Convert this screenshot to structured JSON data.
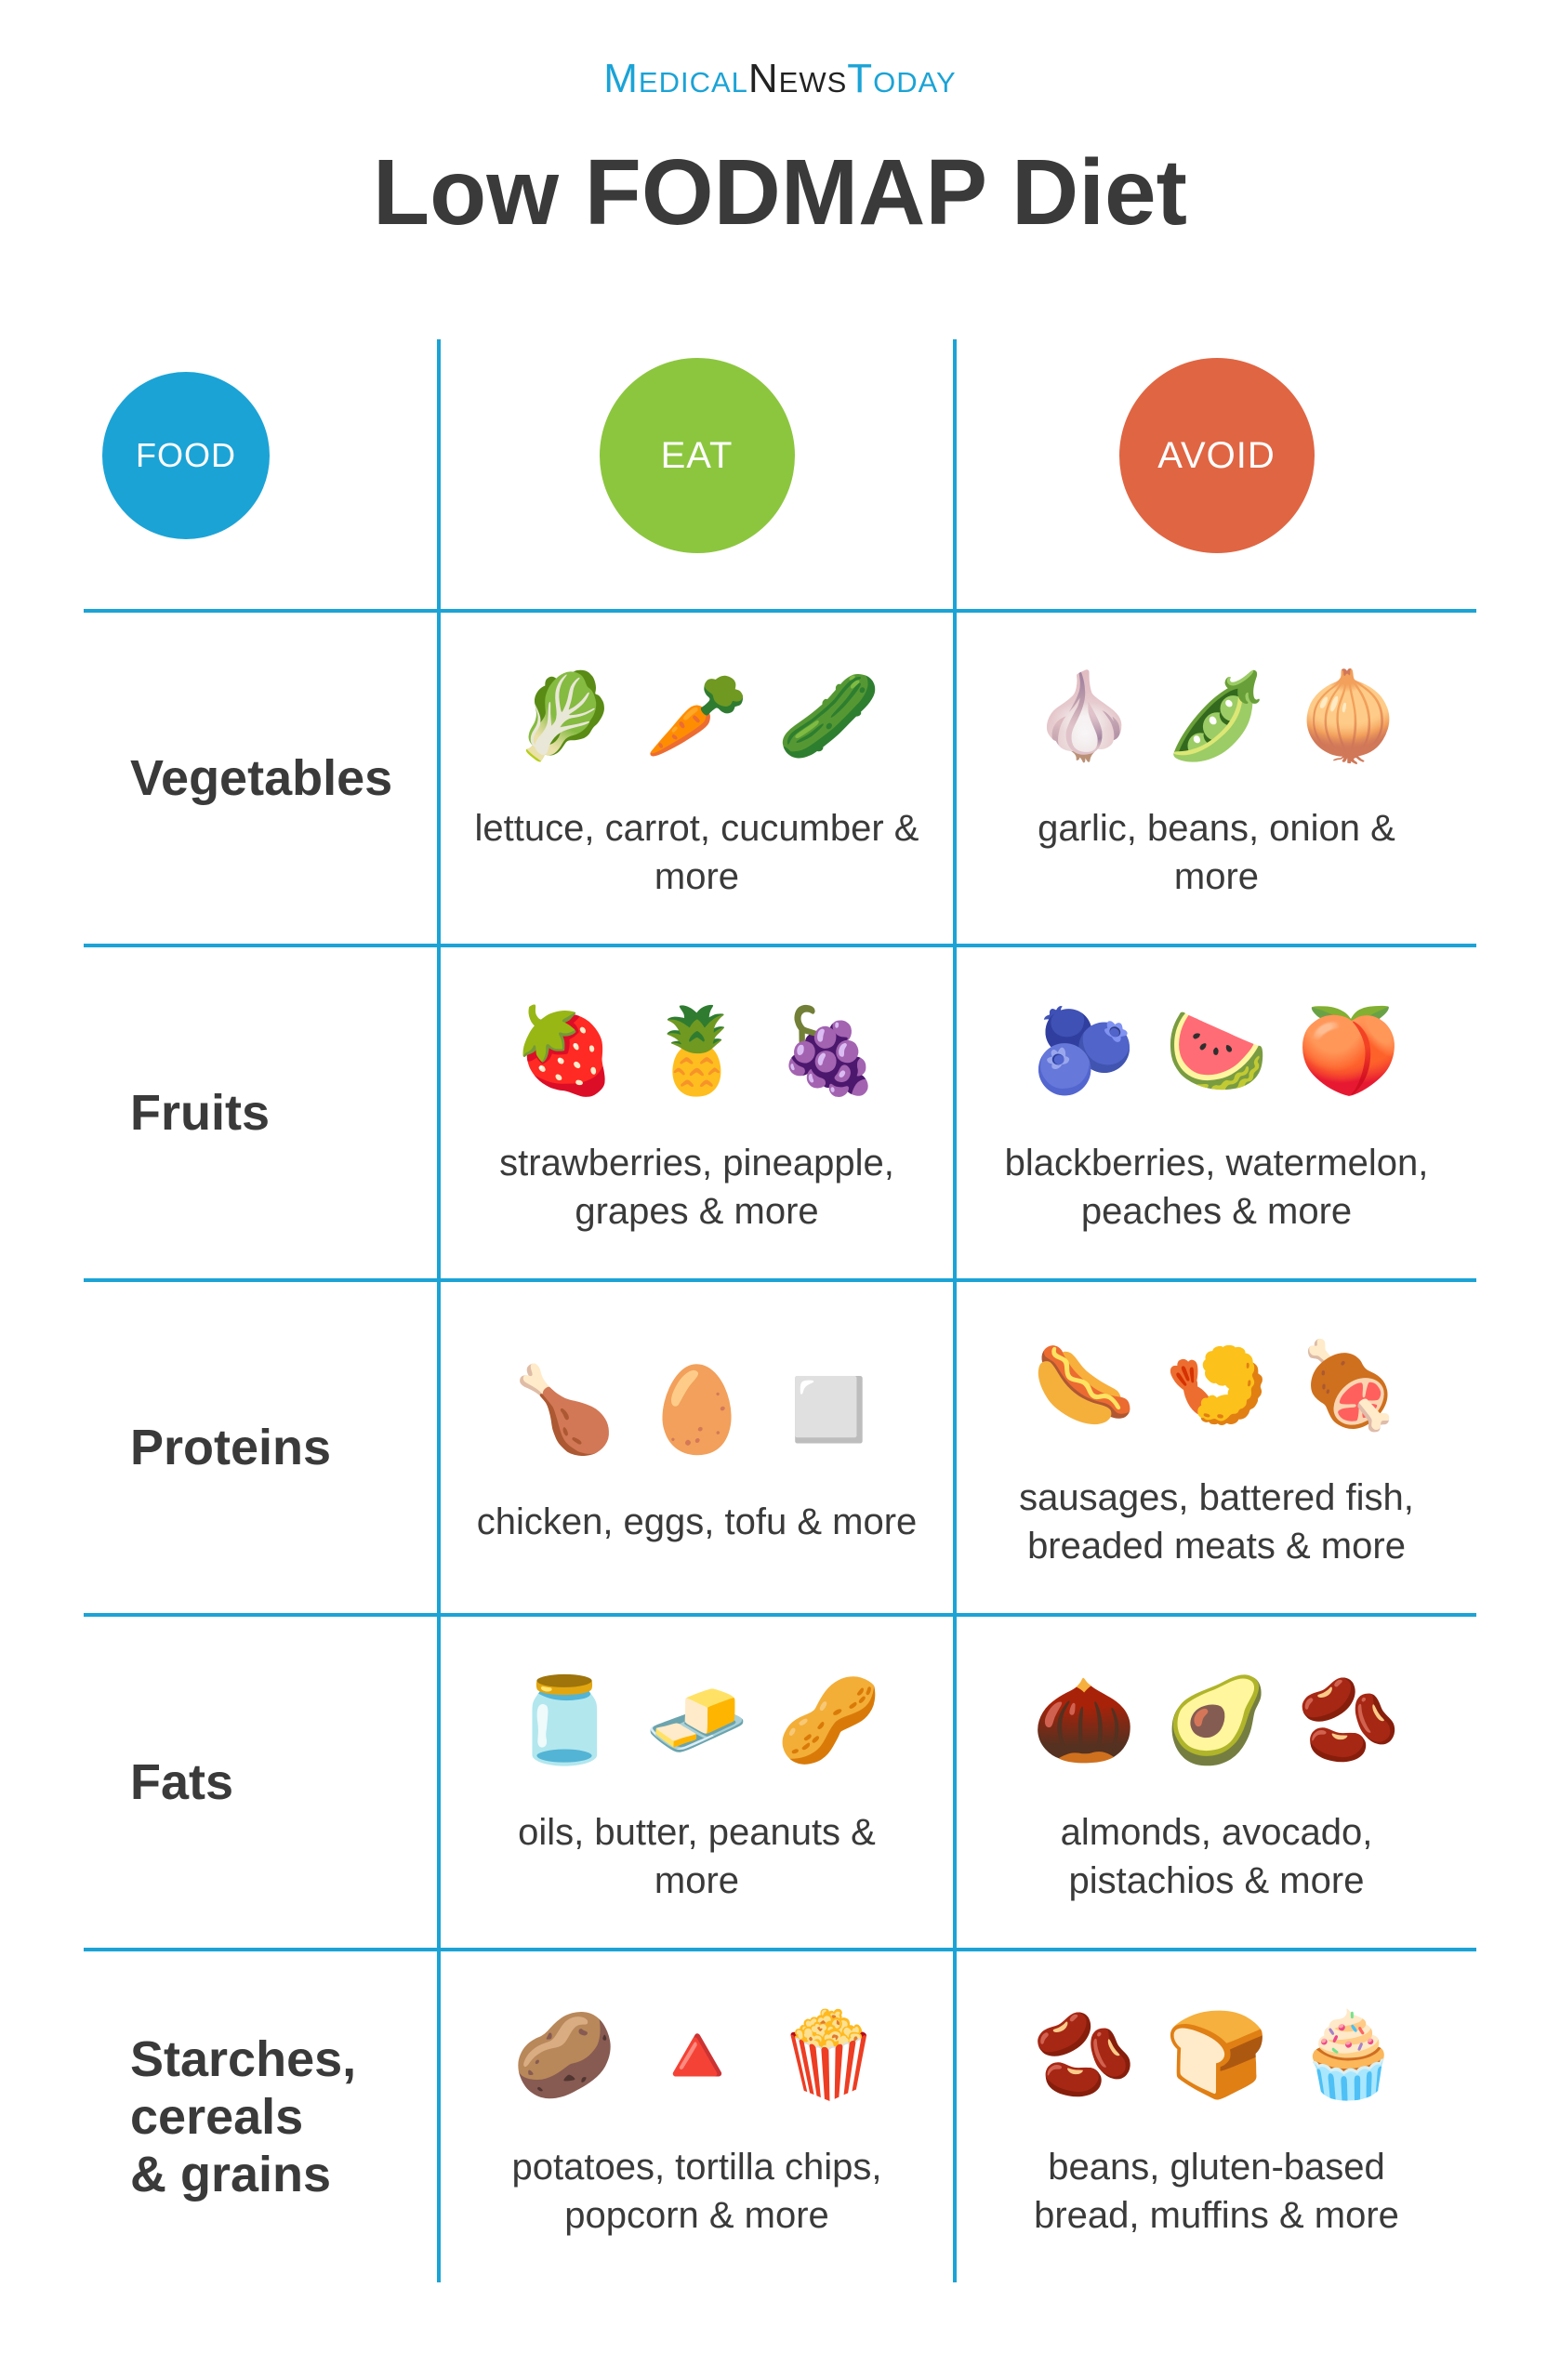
{
  "brand": {
    "part1": "Medical",
    "part2": "News",
    "part3": "Today"
  },
  "title": "Low FODMAP Diet",
  "colors": {
    "food_circle": "#1ba3d6",
    "eat_circle": "#8cc63f",
    "avoid_circle": "#e06543",
    "divider": "#1ba3d6",
    "text": "#3a3a3a",
    "background": "#ffffff"
  },
  "columns": {
    "food": "FOOD",
    "eat": "EAT",
    "avoid": "AVOID"
  },
  "rows": [
    {
      "category": "Vegetables",
      "eat": {
        "icons": [
          "🥬",
          "🥕",
          "🥒"
        ],
        "text": "lettuce, carrot, cucumber & more"
      },
      "avoid": {
        "icons": [
          "🧄",
          "🫛",
          "🧅"
        ],
        "text": "garlic, beans, onion & more"
      }
    },
    {
      "category": "Fruits",
      "eat": {
        "icons": [
          "🍓",
          "🍍",
          "🍇"
        ],
        "text": "strawberries, pineapple, grapes & more"
      },
      "avoid": {
        "icons": [
          "🫐",
          "🍉",
          "🍑"
        ],
        "text": "blackberries, watermelon, peaches & more"
      }
    },
    {
      "category": "Proteins",
      "eat": {
        "icons": [
          "🍗",
          "🥚",
          "◻️"
        ],
        "text": "chicken, eggs, tofu & more"
      },
      "avoid": {
        "icons": [
          "🌭",
          "🍤",
          "🍖"
        ],
        "text": "sausages, battered fish, breaded meats & more"
      }
    },
    {
      "category": "Fats",
      "eat": {
        "icons": [
          "🫙",
          "🧈",
          "🥜"
        ],
        "text": "oils, butter, peanuts & more"
      },
      "avoid": {
        "icons": [
          "🌰",
          "🥑",
          "🫘"
        ],
        "text": "almonds, avocado, pistachios & more"
      }
    },
    {
      "category": "Starches, cereals & grains",
      "eat": {
        "icons": [
          "🥔",
          "🔺",
          "🍿"
        ],
        "text": "potatoes, tortilla chips, popcorn & more"
      },
      "avoid": {
        "icons": [
          "🫘",
          "🍞",
          "🧁"
        ],
        "text": "beans, gluten-based bread, muffins & more"
      }
    }
  ]
}
